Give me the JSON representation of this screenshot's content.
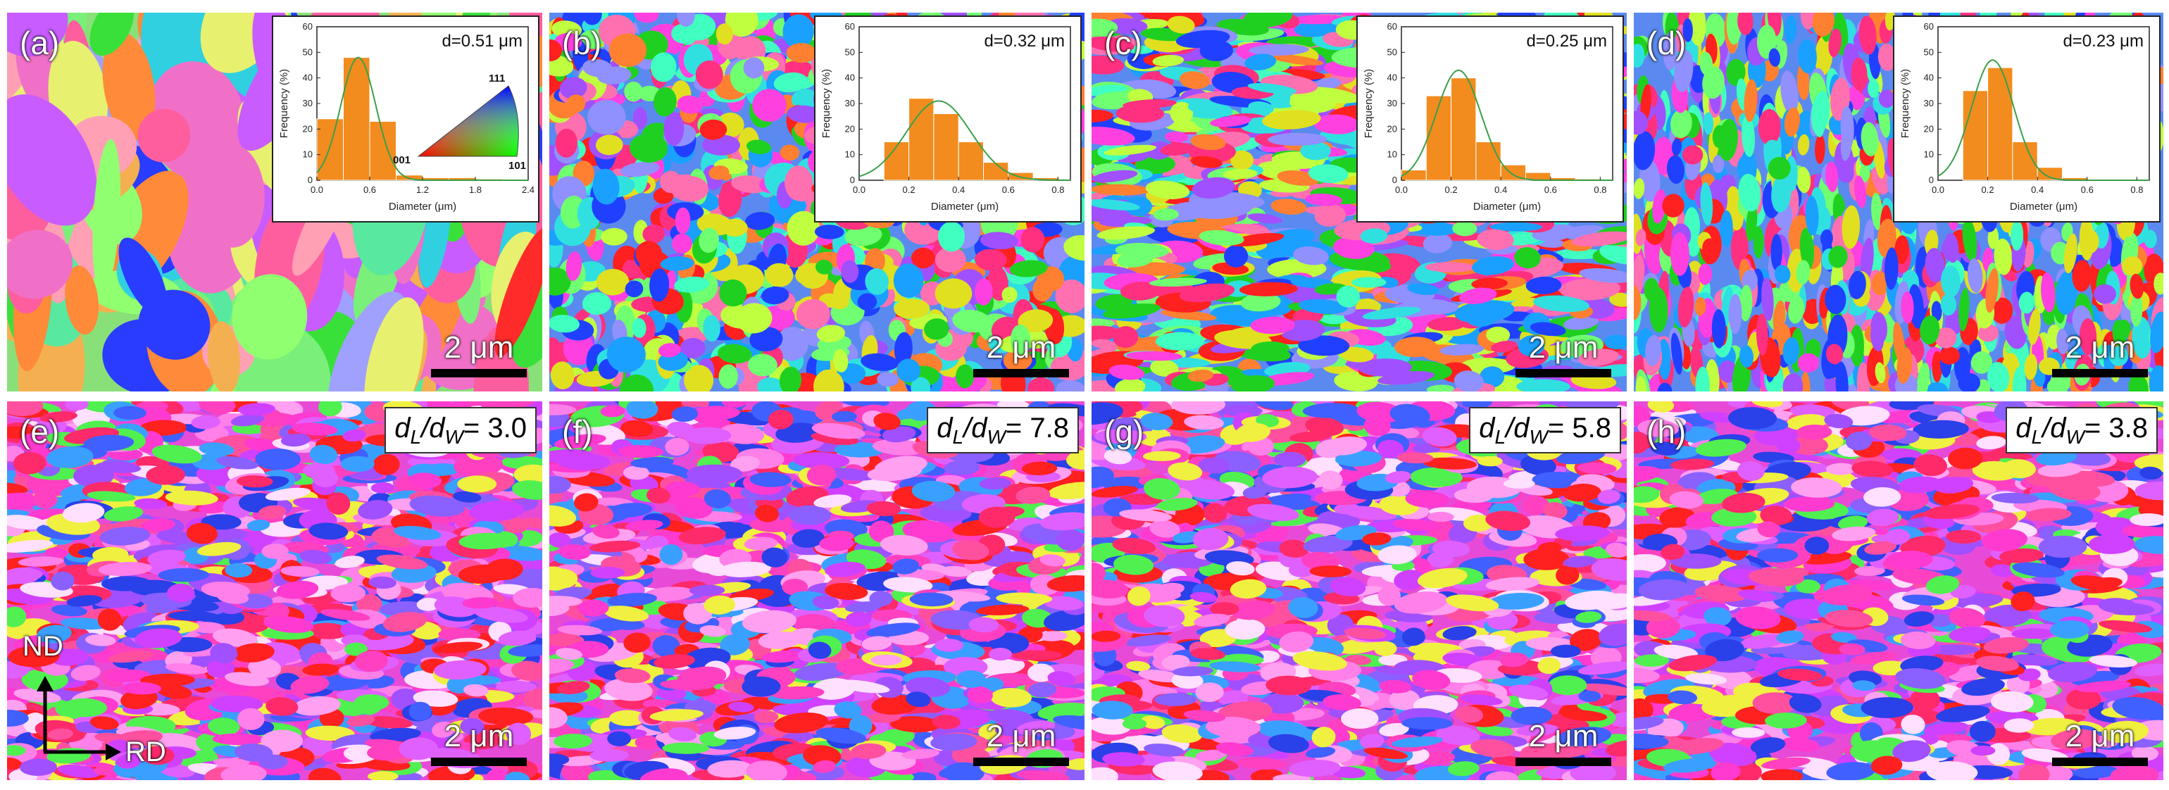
{
  "figure": {
    "panels": [
      {
        "label": "(a)",
        "scale_bar": "2 μm",
        "seed": 11,
        "style": "coarse"
      },
      {
        "label": "(b)",
        "scale_bar": "2 μm",
        "seed": 23,
        "style": "fine"
      },
      {
        "label": "(c)",
        "scale_bar": "2 μm",
        "seed": 37,
        "style": "fine-elongated"
      },
      {
        "label": "(d)",
        "scale_bar": "2 μm",
        "seed": 49,
        "style": "fine-vertical"
      },
      {
        "label": "(e)",
        "scale_bar": "2 μm",
        "seed": 61,
        "style": "pink",
        "ratio_value": "3.0"
      },
      {
        "label": "(f)",
        "scale_bar": "2 μm",
        "seed": 73,
        "style": "pink",
        "ratio_value": "7.8"
      },
      {
        "label": "(g)",
        "scale_bar": "2 μm",
        "seed": 87,
        "style": "pink",
        "ratio_value": "5.8"
      },
      {
        "label": "(h)",
        "scale_bar": "2 μm",
        "seed": 97,
        "style": "pink",
        "ratio_value": "3.8"
      }
    ],
    "ratio_text": {
      "prefix": "d",
      "sub_l": "L",
      "slash": "/d",
      "sub_w": "W",
      "equals": "= "
    },
    "axes": {
      "nd": "ND",
      "rd": "RD"
    },
    "ipf_key": {
      "v111": "111",
      "v001": "001",
      "v101": "101"
    }
  },
  "chart_data": [
    {
      "type": "bar",
      "panel": "(a)",
      "title": "d=0.51 μm",
      "xlabel": "Diameter (μm)",
      "ylabel": "Frequency (%)",
      "xlim": [
        0.0,
        2.4
      ],
      "ylim": [
        0,
        60
      ],
      "xticks": [
        "0.0",
        "0.6",
        "1.2",
        "1.8",
        "2.4"
      ],
      "yticks": [
        "0",
        "10",
        "20",
        "30",
        "40",
        "50",
        "60"
      ],
      "bin_width": 0.3,
      "x": [
        0.15,
        0.45,
        0.75,
        1.05,
        1.35,
        1.65,
        1.95,
        2.25
      ],
      "values": [
        24,
        48,
        23,
        2,
        1,
        1,
        0.5,
        0.3
      ],
      "fit_mean": 0.47,
      "fit_sigma": 0.2,
      "fit_peak": 48
    },
    {
      "type": "bar",
      "panel": "(b)",
      "title": "d=0.32 μm",
      "xlabel": "Diameter (μm)",
      "ylabel": "Frequency (%)",
      "xlim": [
        0.0,
        0.85
      ],
      "ylim": [
        0,
        60
      ],
      "xticks": [
        "0.0",
        "0.2",
        "0.4",
        "0.6",
        "0.8"
      ],
      "yticks": [
        "0",
        "10",
        "20",
        "30",
        "40",
        "50",
        "60"
      ],
      "bin_width": 0.1,
      "x": [
        0.15,
        0.25,
        0.35,
        0.45,
        0.55,
        0.65,
        0.75
      ],
      "values": [
        15,
        32,
        26,
        15,
        7,
        3,
        1
      ],
      "fit_mean": 0.32,
      "fit_sigma": 0.13,
      "fit_peak": 31
    },
    {
      "type": "bar",
      "panel": "(c)",
      "title": "d=0.25 μm",
      "xlabel": "Diameter (μm)",
      "ylabel": "Frequency (%)",
      "xlim": [
        0.0,
        0.85
      ],
      "ylim": [
        0,
        60
      ],
      "xticks": [
        "0.0",
        "0.2",
        "0.4",
        "0.6",
        "0.8"
      ],
      "yticks": [
        "0",
        "10",
        "20",
        "30",
        "40",
        "50",
        "60"
      ],
      "bin_width": 0.1,
      "x": [
        0.05,
        0.15,
        0.25,
        0.35,
        0.45,
        0.55,
        0.65,
        0.75
      ],
      "values": [
        4,
        33,
        40,
        15,
        6,
        3,
        1,
        0.5
      ],
      "fit_mean": 0.23,
      "fit_sigma": 0.09,
      "fit_peak": 43
    },
    {
      "type": "bar",
      "panel": "(d)",
      "title": "d=0.23 μm",
      "xlabel": "Diameter (μm)",
      "ylabel": "Frequency (%)",
      "xlim": [
        0.0,
        0.85
      ],
      "ylim": [
        0,
        60
      ],
      "xticks": [
        "0.0",
        "0.2",
        "0.4",
        "0.6",
        "0.8"
      ],
      "yticks": [
        "0",
        "10",
        "20",
        "30",
        "40",
        "50",
        "60"
      ],
      "bin_width": 0.1,
      "x": [
        0.15,
        0.25,
        0.35,
        0.45,
        0.55
      ],
      "values": [
        35,
        44,
        15,
        5,
        1
      ],
      "fit_mean": 0.22,
      "fit_sigma": 0.085,
      "fit_peak": 47
    }
  ]
}
